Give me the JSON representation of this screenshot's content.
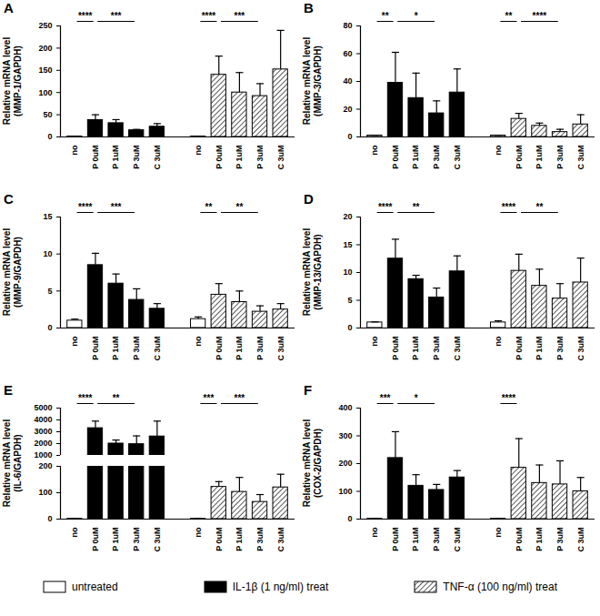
{
  "chart_data": [
    {
      "type": "bar",
      "title": "A",
      "y_label": "Relative mRNA level\n(MMP-1/GAPDH)",
      "categories": [
        "no",
        "P 0uM",
        "P 1uM",
        "P 3uM",
        "C 3uM",
        "no",
        "P 0uM",
        "P 1uM",
        "P 3uM",
        "C 3uM"
      ],
      "series": [
        {
          "name": "untreated",
          "color": "#ffffff",
          "values": [
            1,
            null,
            null,
            null,
            null,
            1,
            null,
            null,
            null,
            null
          ],
          "errors": [
            0.3,
            null,
            null,
            null,
            null,
            0.3,
            null,
            null,
            null,
            null
          ]
        },
        {
          "name": "IL-1β (1 ng/ml) treat",
          "color": "#000000",
          "values": [
            null,
            38,
            31,
            15,
            23,
            null,
            null,
            null,
            null,
            null
          ],
          "errors": [
            null,
            12,
            8,
            2,
            7,
            null,
            null,
            null,
            null,
            null
          ]
        },
        {
          "name": "TNF-α (100 ng/ml) treat",
          "color": "#ffffff",
          "marker": "hatch",
          "values": [
            null,
            null,
            null,
            null,
            null,
            null,
            140,
            100,
            92,
            152
          ],
          "errors": [
            null,
            null,
            null,
            null,
            null,
            null,
            42,
            45,
            28,
            88
          ]
        }
      ],
      "ylim": [
        0,
        250
      ],
      "yticks": [
        0,
        50,
        100,
        150,
        200,
        250
      ],
      "annotations": [
        {
          "from": 0,
          "to": 1,
          "label": "****"
        },
        {
          "from": 1,
          "to": 3,
          "label": "***"
        },
        {
          "from": 5,
          "to": 6,
          "label": "****"
        },
        {
          "from": 6,
          "to": 8,
          "label": "***"
        }
      ]
    },
    {
      "type": "bar",
      "title": "B",
      "y_label": "Relative mRNA level\n(MMP-3/GAPDH)",
      "categories": [
        "no",
        "P 0uM",
        "P 1uM",
        "P 3uM",
        "C 3uM",
        "no",
        "P 0uM",
        "P 1uM",
        "P 3uM",
        "C 3uM"
      ],
      "series": [
        {
          "name": "untreated",
          "color": "#ffffff",
          "values": [
            1,
            null,
            null,
            null,
            null,
            1,
            null,
            null,
            null,
            null
          ],
          "errors": [
            0.2,
            null,
            null,
            null,
            null,
            0.2,
            null,
            null,
            null,
            null
          ]
        },
        {
          "name": "IL-1β (1 ng/ml) treat",
          "color": "#000000",
          "values": [
            null,
            39,
            28,
            17,
            32,
            null,
            null,
            null,
            null,
            null
          ],
          "errors": [
            null,
            22,
            18,
            9,
            17,
            null,
            null,
            null,
            null,
            null
          ]
        },
        {
          "name": "TNF-α (100 ng/ml) treat",
          "color": "#ffffff",
          "marker": "hatch",
          "values": [
            null,
            null,
            null,
            null,
            null,
            null,
            13,
            8,
            3.5,
            9
          ],
          "errors": [
            null,
            null,
            null,
            null,
            null,
            null,
            4,
            2,
            2,
            7
          ]
        }
      ],
      "ylim": [
        0,
        80
      ],
      "yticks": [
        0,
        20,
        40,
        60,
        80
      ],
      "annotations": [
        {
          "from": 0,
          "to": 1,
          "label": "**"
        },
        {
          "from": 1,
          "to": 3,
          "label": "*"
        },
        {
          "from": 5,
          "to": 6,
          "label": "**"
        },
        {
          "from": 6,
          "to": 8,
          "label": "****"
        }
      ]
    },
    {
      "type": "bar",
      "title": "C",
      "y_label": "Relative mRNA level\n(MMP-9/GAPDH)",
      "categories": [
        "no",
        "P 0uM",
        "P 1uM",
        "P 3uM",
        "C 3uM",
        "no",
        "P 0uM",
        "P 1uM",
        "P 3uM",
        "C 3uM"
      ],
      "series": [
        {
          "name": "untreated",
          "color": "#ffffff",
          "values": [
            1,
            null,
            null,
            null,
            null,
            1.2,
            null,
            null,
            null,
            null
          ],
          "errors": [
            0.2,
            null,
            null,
            null,
            null,
            0.3,
            null,
            null,
            null,
            null
          ]
        },
        {
          "name": "IL-1β (1 ng/ml) treat",
          "color": "#000000",
          "values": [
            null,
            8.5,
            6,
            3.8,
            2.6,
            null,
            null,
            null,
            null,
            null
          ],
          "errors": [
            null,
            1.6,
            1.3,
            1.5,
            0.7,
            null,
            null,
            null,
            null,
            null
          ]
        },
        {
          "name": "TNF-α (100 ng/ml) treat",
          "color": "#ffffff",
          "marker": "hatch",
          "values": [
            null,
            null,
            null,
            null,
            null,
            null,
            4.5,
            3.5,
            2.2,
            2.5
          ],
          "errors": [
            null,
            null,
            null,
            null,
            null,
            null,
            1.5,
            1.5,
            0.8,
            0.8
          ]
        }
      ],
      "ylim": [
        0,
        15
      ],
      "yticks": [
        0,
        5,
        10,
        15
      ],
      "annotations": [
        {
          "from": 0,
          "to": 1,
          "label": "****"
        },
        {
          "from": 1,
          "to": 3,
          "label": "***"
        },
        {
          "from": 5,
          "to": 6,
          "label": "**"
        },
        {
          "from": 6,
          "to": 8,
          "label": "**"
        }
      ]
    },
    {
      "type": "bar",
      "title": "D",
      "y_label": "Relative mRNA level\n(MMP-13/GAPDH)",
      "categories": [
        "no",
        "P 0uM",
        "P 1uM",
        "P 3uM",
        "C 3uM",
        "no",
        "P 0uM",
        "P 1uM",
        "P 3uM",
        "C 3uM"
      ],
      "series": [
        {
          "name": "untreated",
          "color": "#ffffff",
          "values": [
            1,
            null,
            null,
            null,
            null,
            1,
            null,
            null,
            null,
            null
          ],
          "errors": [
            0.1,
            null,
            null,
            null,
            null,
            0.3,
            null,
            null,
            null,
            null
          ]
        },
        {
          "name": "IL-1β (1 ng/ml) treat",
          "color": "#000000",
          "values": [
            null,
            12.5,
            8.8,
            5.5,
            10.2,
            null,
            null,
            null,
            null,
            null
          ],
          "errors": [
            null,
            3.5,
            0.7,
            1.7,
            2.8,
            null,
            null,
            null,
            null,
            null
          ]
        },
        {
          "name": "TNF-α (100 ng/ml) treat",
          "color": "#ffffff",
          "marker": "hatch",
          "values": [
            null,
            null,
            null,
            null,
            null,
            null,
            10.3,
            7.6,
            5.3,
            8.2
          ],
          "errors": [
            null,
            null,
            null,
            null,
            null,
            null,
            3,
            3,
            2.7,
            4.4
          ]
        }
      ],
      "ylim": [
        0,
        20
      ],
      "yticks": [
        0,
        5,
        10,
        15,
        20
      ],
      "annotations": [
        {
          "from": 0,
          "to": 1,
          "label": "****"
        },
        {
          "from": 1,
          "to": 3,
          "label": "**"
        },
        {
          "from": 5,
          "to": 6,
          "label": "****"
        },
        {
          "from": 6,
          "to": 8,
          "label": "**"
        }
      ]
    },
    {
      "type": "bar",
      "title": "E",
      "y_label": "Relative mRNA level\n(IL-6/GAPDH)",
      "categories": [
        "no",
        "P 0uM",
        "P 1uM",
        "P 3uM",
        "C 3uM",
        "no",
        "P 0uM",
        "P 1uM",
        "P 3uM",
        "C 3uM"
      ],
      "series": [
        {
          "name": "untreated",
          "color": "#ffffff",
          "values": [
            1,
            null,
            null,
            null,
            null,
            1,
            null,
            null,
            null,
            null
          ],
          "errors": [
            0.5,
            null,
            null,
            null,
            null,
            0.5,
            null,
            null,
            null,
            null
          ]
        },
        {
          "name": "IL-1β (1 ng/ml) treat",
          "color": "#000000",
          "values": [
            null,
            3300,
            2000,
            1950,
            2600,
            null,
            null,
            null,
            null,
            null
          ],
          "errors": [
            null,
            600,
            300,
            700,
            1300,
            null,
            null,
            null,
            null,
            null
          ]
        },
        {
          "name": "TNF-α (100 ng/ml) treat",
          "color": "#ffffff",
          "marker": "hatch",
          "values": [
            null,
            null,
            null,
            null,
            null,
            null,
            122,
            103,
            65,
            120
          ],
          "errors": [
            null,
            null,
            null,
            null,
            null,
            null,
            20,
            55,
            28,
            50
          ]
        }
      ],
      "ylim": [
        0,
        5000
      ],
      "yticks": [
        0,
        100,
        200,
        1000,
        2000,
        3000,
        4000,
        5000
      ],
      "annotations": [
        {
          "from": 0,
          "to": 1,
          "label": "****"
        },
        {
          "from": 1,
          "to": 3,
          "label": "**"
        },
        {
          "from": 5,
          "to": 6,
          "label": "***"
        },
        {
          "from": 6,
          "to": 8,
          "label": "***"
        }
      ]
    },
    {
      "type": "bar",
      "title": "F",
      "y_label": "Relative mRNA level\n(COX-2/GAPDH)",
      "categories": [
        "no",
        "P 0uM",
        "P 1uM",
        "P 3uM",
        "C 3uM",
        "no",
        "P 0uM",
        "P 1uM",
        "P 3uM",
        "C 3uM"
      ],
      "series": [
        {
          "name": "untreated",
          "color": "#ffffff",
          "values": [
            1,
            null,
            null,
            null,
            null,
            1,
            null,
            null,
            null,
            null
          ],
          "errors": [
            0.3,
            null,
            null,
            null,
            null,
            0.3,
            null,
            null,
            null,
            null
          ]
        },
        {
          "name": "IL-1β (1 ng/ml) treat",
          "color": "#000000",
          "values": [
            null,
            220,
            120,
            105,
            150,
            null,
            null,
            null,
            null,
            null
          ],
          "errors": [
            null,
            95,
            40,
            20,
            25,
            null,
            null,
            null,
            null,
            null
          ]
        },
        {
          "name": "TNF-α (100 ng/ml) treat",
          "color": "#ffffff",
          "marker": "hatch",
          "values": [
            null,
            null,
            null,
            null,
            null,
            null,
            185,
            130,
            125,
            100
          ],
          "errors": [
            null,
            null,
            null,
            null,
            null,
            null,
            105,
            65,
            85,
            50
          ]
        }
      ],
      "ylim": [
        0,
        400
      ],
      "yticks": [
        0,
        100,
        200,
        300,
        400
      ],
      "annotations": [
        {
          "from": 0,
          "to": 1,
          "label": "***"
        },
        {
          "from": 1,
          "to": 3,
          "label": "*"
        },
        {
          "from": 5,
          "to": 6,
          "label": "****"
        }
      ]
    }
  ]
}
